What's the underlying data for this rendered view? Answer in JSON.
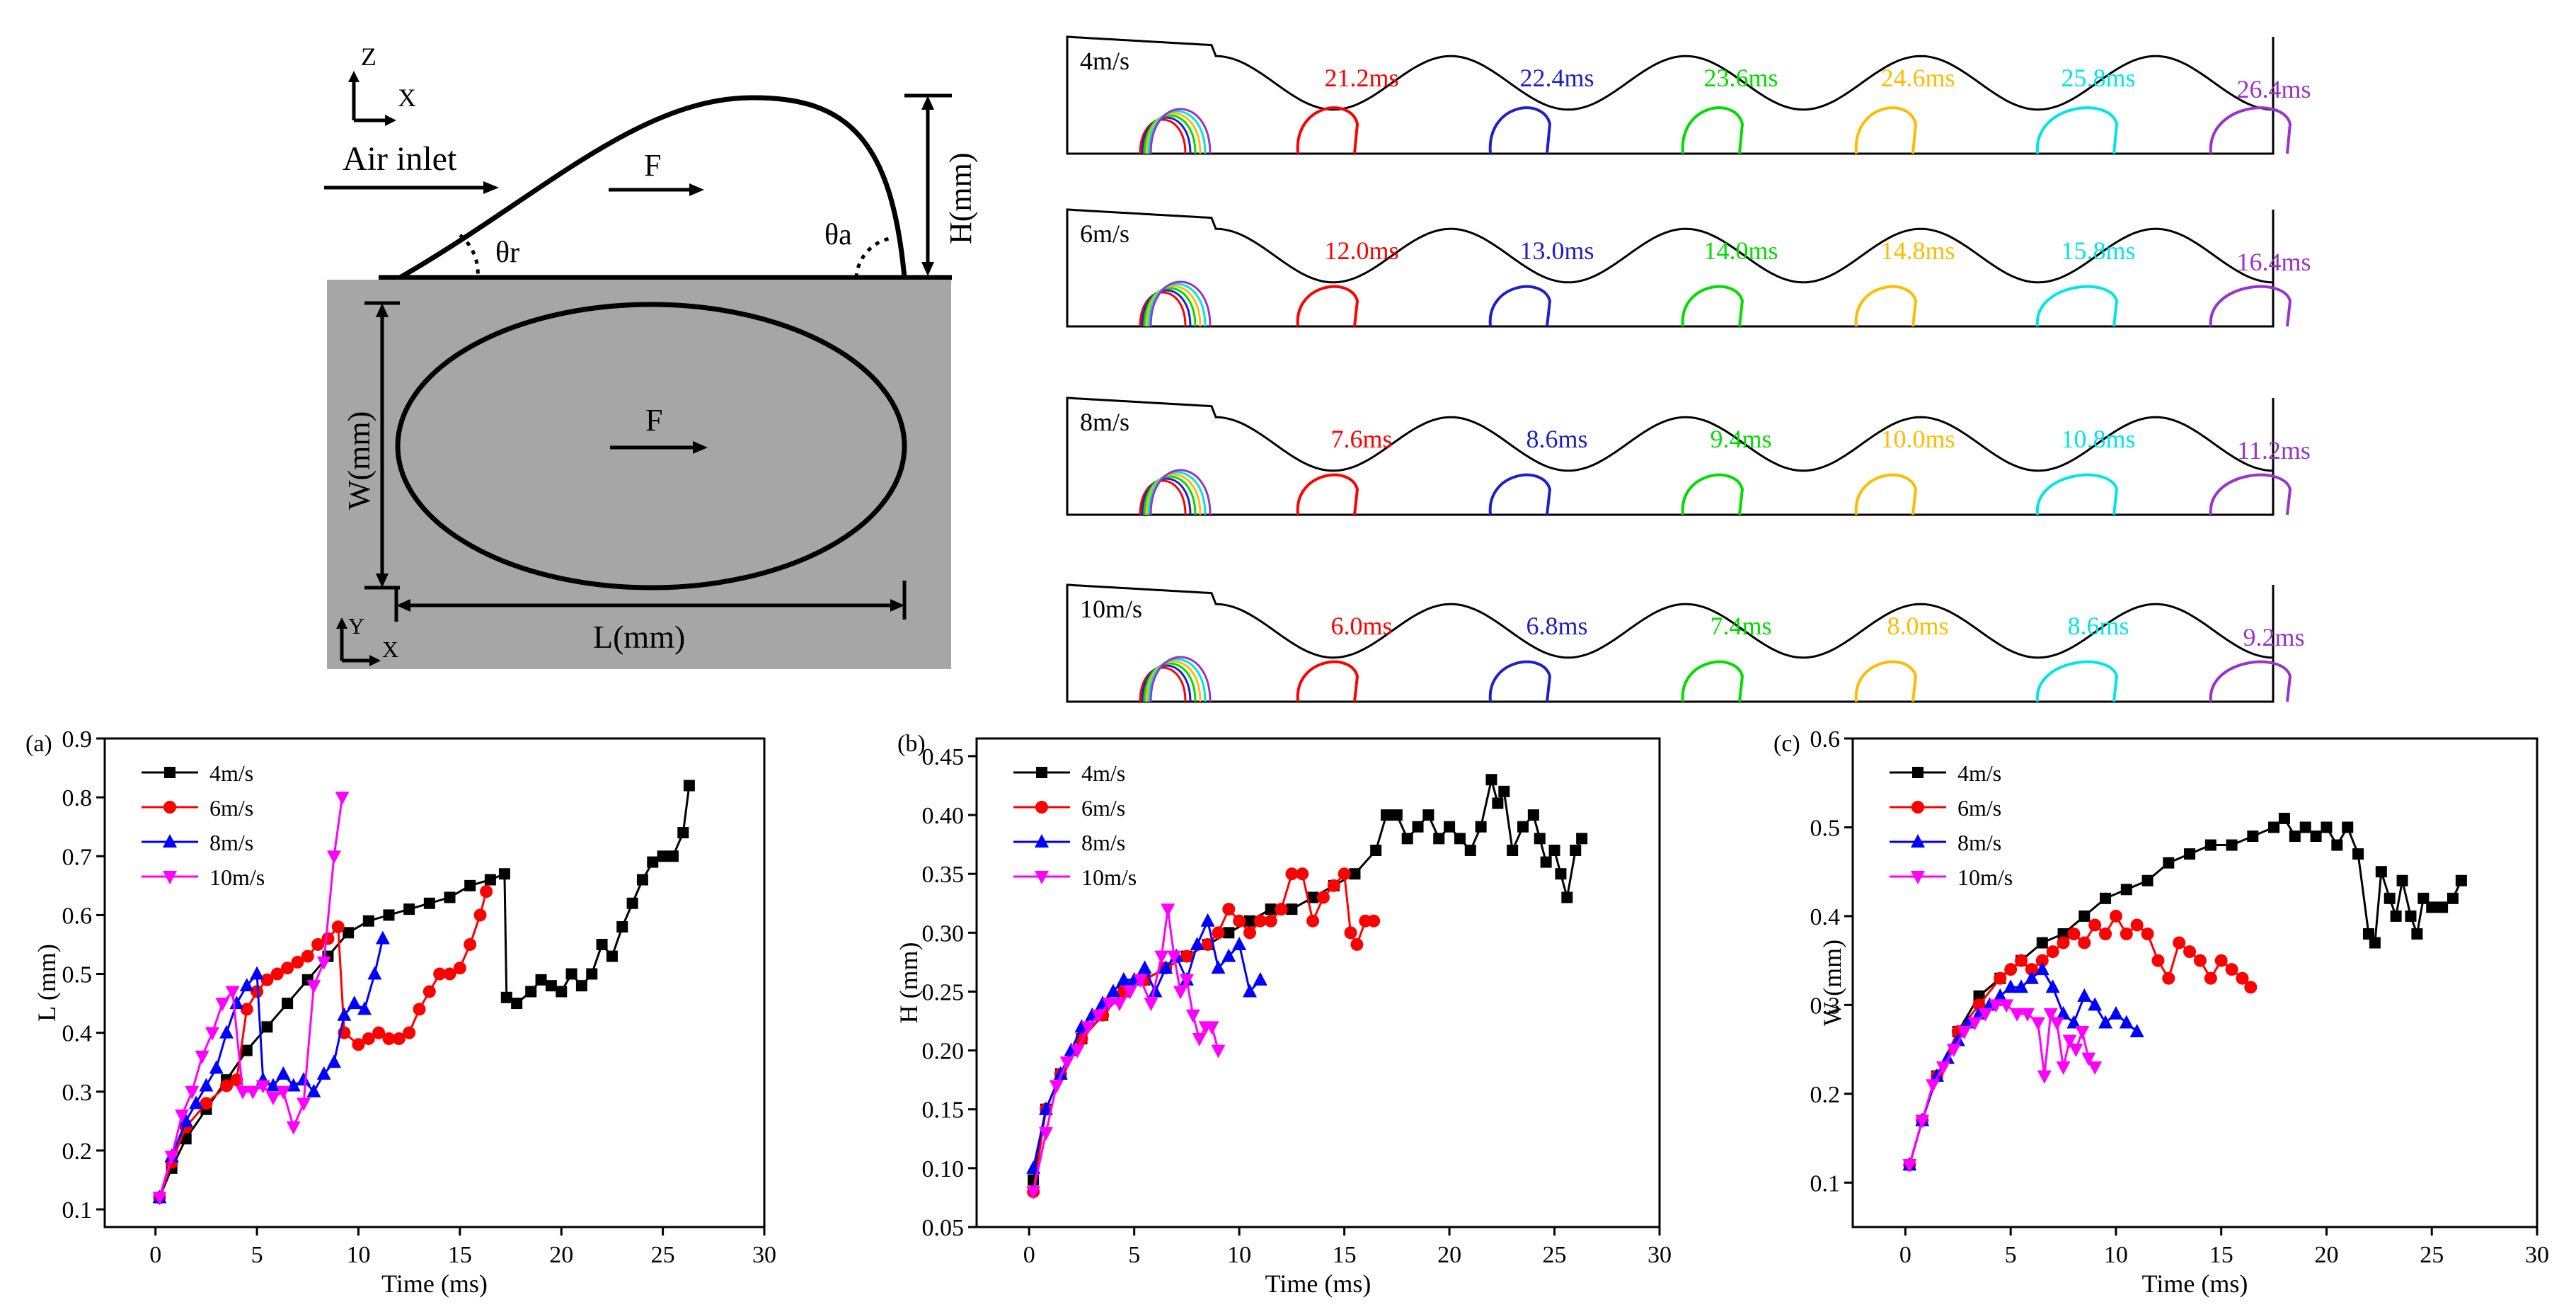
{
  "schematic": {
    "axes_top": {
      "z": "Z",
      "x": "X"
    },
    "axes_bottom": {
      "y": "Y",
      "x": "X"
    },
    "air_inlet": "Air inlet",
    "force_label": "F",
    "theta_r": "θr",
    "theta_a": "θa",
    "height_label": "H(mm)",
    "width_label": "W(mm)",
    "length_label": "L(mm)",
    "colors": {
      "plate": "#a6a6a6",
      "stroke": "#000000"
    }
  },
  "snapshots": [
    {
      "speed": "4m/s",
      "times": [
        "21.2ms",
        "22.4ms",
        "23.6ms",
        "24.6ms",
        "25.8ms",
        "26.4ms"
      ]
    },
    {
      "speed": "6m/s",
      "times": [
        "12.0ms",
        "13.0ms",
        "14.0ms",
        "14.8ms",
        "15.8ms",
        "16.4ms"
      ]
    },
    {
      "speed": "8m/s",
      "times": [
        "7.6ms",
        "8.6ms",
        "9.4ms",
        "10.0ms",
        "10.8ms",
        "11.2ms"
      ]
    },
    {
      "speed": "10m/s",
      "times": [
        "6.0ms",
        "6.8ms",
        "7.4ms",
        "8.0ms",
        "8.6ms",
        "9.2ms"
      ]
    }
  ],
  "snapshot_colors": [
    "#ff0000",
    "#1e1ecc",
    "#00dd00",
    "#ffbb00",
    "#00e5e5",
    "#9933cc"
  ],
  "chart_data": [
    {
      "type": "line",
      "panel": "(a)",
      "xlabel": "Time (ms)",
      "ylabel": "L (mm)",
      "xlim": [
        -2.5,
        30
      ],
      "ylim": [
        0.07,
        0.9
      ],
      "xticks": [
        "0",
        "5",
        "10",
        "15",
        "20",
        "25",
        "30"
      ],
      "yticks": [
        "0.1",
        "0.2",
        "0.3",
        "0.4",
        "0.5",
        "0.6",
        "0.7",
        "0.8",
        "0.9"
      ],
      "legend": "top-left",
      "series": [
        {
          "name": "4m/s",
          "color": "#000000",
          "marker": "square",
          "x": [
            0.2,
            0.8,
            1.5,
            2.5,
            3.5,
            4.5,
            5.5,
            6.5,
            7.5,
            8.5,
            9.5,
            10.5,
            11.5,
            12.5,
            13.5,
            14.5,
            15.5,
            16.5,
            17.2,
            17.3,
            17.8,
            18.5,
            19.0,
            19.5,
            20.0,
            20.5,
            21.0,
            21.5,
            22.0,
            22.5,
            23.0,
            23.5,
            24.0,
            24.5,
            25.0,
            25.5,
            26.0,
            26.3
          ],
          "y": [
            0.12,
            0.17,
            0.22,
            0.27,
            0.32,
            0.37,
            0.41,
            0.45,
            0.49,
            0.53,
            0.57,
            0.59,
            0.6,
            0.61,
            0.62,
            0.63,
            0.65,
            0.66,
            0.67,
            0.46,
            0.45,
            0.47,
            0.49,
            0.48,
            0.47,
            0.5,
            0.48,
            0.5,
            0.55,
            0.53,
            0.58,
            0.62,
            0.66,
            0.69,
            0.7,
            0.7,
            0.74,
            0.82
          ]
        },
        {
          "name": "6m/s",
          "color": "#ff0000",
          "marker": "circle",
          "x": [
            0.2,
            0.8,
            1.5,
            2.5,
            3.5,
            4.0,
            4.5,
            5.0,
            5.5,
            6.0,
            6.5,
            7.0,
            7.5,
            8.0,
            8.5,
            9.0,
            9.3,
            10.0,
            10.5,
            11.0,
            11.5,
            12.0,
            12.5,
            13.0,
            13.5,
            14.0,
            14.5,
            15.0,
            15.5,
            16.0,
            16.3
          ],
          "y": [
            0.12,
            0.18,
            0.24,
            0.28,
            0.31,
            0.32,
            0.44,
            0.47,
            0.49,
            0.5,
            0.51,
            0.52,
            0.53,
            0.55,
            0.56,
            0.58,
            0.4,
            0.38,
            0.39,
            0.4,
            0.39,
            0.39,
            0.4,
            0.44,
            0.47,
            0.5,
            0.5,
            0.51,
            0.55,
            0.6,
            0.64
          ]
        },
        {
          "name": "8m/s",
          "color": "#0000ff",
          "marker": "triangle-up",
          "x": [
            0.2,
            0.8,
            1.5,
            2.0,
            2.5,
            3.0,
            3.5,
            4.0,
            4.5,
            5.0,
            5.3,
            5.8,
            6.3,
            6.8,
            7.3,
            7.8,
            8.3,
            8.8,
            9.3,
            9.8,
            10.3,
            10.8,
            11.2
          ],
          "y": [
            0.12,
            0.19,
            0.25,
            0.28,
            0.31,
            0.34,
            0.4,
            0.45,
            0.48,
            0.5,
            0.32,
            0.31,
            0.33,
            0.31,
            0.32,
            0.3,
            0.33,
            0.35,
            0.43,
            0.45,
            0.44,
            0.5,
            0.56
          ]
        },
        {
          "name": "10m/s",
          "color": "#ff00ff",
          "marker": "triangle-down",
          "x": [
            0.2,
            0.8,
            1.3,
            1.8,
            2.3,
            2.8,
            3.3,
            3.8,
            4.3,
            4.8,
            5.3,
            5.8,
            6.3,
            6.8,
            7.3,
            7.8,
            8.3,
            8.8,
            9.2
          ],
          "y": [
            0.12,
            0.19,
            0.26,
            0.3,
            0.36,
            0.4,
            0.45,
            0.47,
            0.3,
            0.3,
            0.31,
            0.29,
            0.3,
            0.24,
            0.28,
            0.48,
            0.52,
            0.7,
            0.8
          ]
        }
      ]
    },
    {
      "type": "line",
      "panel": "(b)",
      "xlabel": "Time (ms)",
      "ylabel": "H (mm)",
      "xlim": [
        -2.5,
        30
      ],
      "ylim": [
        0.05,
        0.465
      ],
      "xticks": [
        "0",
        "5",
        "10",
        "15",
        "20",
        "25",
        "30"
      ],
      "yticks": [
        "0.05",
        "0.10",
        "0.15",
        "0.20",
        "0.25",
        "0.30",
        "0.35",
        "0.40",
        "0.45"
      ],
      "legend": "top-left",
      "series": [
        {
          "name": "4m/s",
          "color": "#000000",
          "marker": "square",
          "x": [
            0.2,
            0.8,
            1.5,
            2.5,
            3.5,
            4.5,
            5.5,
            6.5,
            7.5,
            8.5,
            9.5,
            10.5,
            11.5,
            12.5,
            13.5,
            14.5,
            15.5,
            16.5,
            17.0,
            17.5,
            18.0,
            18.5,
            19.0,
            19.5,
            20.0,
            20.5,
            21.0,
            21.5,
            22.0,
            22.3,
            22.6,
            23.0,
            23.5,
            24.0,
            24.3,
            24.6,
            25.0,
            25.3,
            25.6,
            26.0,
            26.3
          ],
          "y": [
            0.09,
            0.15,
            0.18,
            0.21,
            0.23,
            0.25,
            0.26,
            0.27,
            0.28,
            0.29,
            0.3,
            0.31,
            0.32,
            0.32,
            0.33,
            0.34,
            0.35,
            0.37,
            0.4,
            0.4,
            0.38,
            0.39,
            0.4,
            0.38,
            0.39,
            0.38,
            0.37,
            0.39,
            0.43,
            0.41,
            0.42,
            0.37,
            0.39,
            0.4,
            0.38,
            0.36,
            0.37,
            0.35,
            0.33,
            0.37,
            0.38
          ]
        },
        {
          "name": "6m/s",
          "color": "#ff0000",
          "marker": "circle",
          "x": [
            0.2,
            0.8,
            1.5,
            2.5,
            3.5,
            4.5,
            5.5,
            6.5,
            7.5,
            8.5,
            9.0,
            9.5,
            10.0,
            10.5,
            11.0,
            11.5,
            12.0,
            12.5,
            13.0,
            13.5,
            14.0,
            14.5,
            15.0,
            15.3,
            15.6,
            16.0,
            16.4
          ],
          "y": [
            0.08,
            0.15,
            0.18,
            0.21,
            0.23,
            0.25,
            0.26,
            0.27,
            0.28,
            0.29,
            0.3,
            0.32,
            0.31,
            0.3,
            0.31,
            0.31,
            0.32,
            0.35,
            0.35,
            0.31,
            0.33,
            0.34,
            0.35,
            0.3,
            0.29,
            0.31,
            0.31
          ]
        },
        {
          "name": "8m/s",
          "color": "#0000ff",
          "marker": "triangle-up",
          "x": [
            0.2,
            0.8,
            1.5,
            2.0,
            2.5,
            3.0,
            3.5,
            4.0,
            4.5,
            5.0,
            5.5,
            6.0,
            6.5,
            7.0,
            7.5,
            8.0,
            8.5,
            9.0,
            9.5,
            10.0,
            10.5,
            11.0
          ],
          "y": [
            0.1,
            0.15,
            0.18,
            0.2,
            0.22,
            0.23,
            0.24,
            0.25,
            0.26,
            0.26,
            0.27,
            0.25,
            0.27,
            0.28,
            0.26,
            0.29,
            0.31,
            0.27,
            0.28,
            0.29,
            0.25,
            0.26
          ]
        },
        {
          "name": "10m/s",
          "color": "#ff00ff",
          "marker": "triangle-down",
          "x": [
            0.2,
            0.8,
            1.3,
            1.8,
            2.3,
            2.8,
            3.3,
            3.8,
            4.3,
            4.8,
            5.3,
            5.8,
            6.3,
            6.6,
            6.9,
            7.2,
            7.5,
            7.8,
            8.1,
            8.4,
            8.7,
            9.0
          ],
          "y": [
            0.08,
            0.13,
            0.17,
            0.19,
            0.2,
            0.22,
            0.23,
            0.24,
            0.24,
            0.25,
            0.26,
            0.24,
            0.28,
            0.32,
            0.28,
            0.25,
            0.26,
            0.23,
            0.21,
            0.22,
            0.22,
            0.2
          ]
        }
      ]
    },
    {
      "type": "line",
      "panel": "(c)",
      "xlabel": "Time (ms)",
      "ylabel": "W (mm)",
      "xlim": [
        -2.5,
        30
      ],
      "ylim": [
        0.05,
        0.6
      ],
      "xticks": [
        "0",
        "5",
        "10",
        "15",
        "20",
        "25",
        "30"
      ],
      "yticks": [
        "0.1",
        "0.2",
        "0.3",
        "0.4",
        "0.5",
        "0.6"
      ],
      "legend": "top-left",
      "series": [
        {
          "name": "4m/s",
          "color": "#000000",
          "marker": "square",
          "x": [
            0.2,
            0.8,
            1.5,
            2.5,
            3.5,
            4.5,
            5.5,
            6.5,
            7.5,
            8.5,
            9.5,
            10.5,
            11.5,
            12.5,
            13.5,
            14.5,
            15.5,
            16.5,
            17.5,
            18.0,
            18.5,
            19.0,
            19.5,
            20.0,
            20.5,
            21.0,
            21.5,
            22.0,
            22.3,
            22.6,
            23.0,
            23.3,
            23.6,
            24.0,
            24.3,
            24.6,
            25.0,
            25.5,
            26.0,
            26.4
          ],
          "y": [
            0.12,
            0.17,
            0.22,
            0.27,
            0.31,
            0.33,
            0.35,
            0.37,
            0.38,
            0.4,
            0.42,
            0.43,
            0.44,
            0.46,
            0.47,
            0.48,
            0.48,
            0.49,
            0.5,
            0.51,
            0.49,
            0.5,
            0.49,
            0.5,
            0.48,
            0.5,
            0.47,
            0.38,
            0.37,
            0.45,
            0.42,
            0.4,
            0.44,
            0.4,
            0.38,
            0.42,
            0.41,
            0.41,
            0.42,
            0.44
          ]
        },
        {
          "name": "6m/s",
          "color": "#ff0000",
          "marker": "circle",
          "x": [
            0.2,
            0.8,
            1.5,
            2.5,
            3.5,
            4.5,
            5.0,
            5.5,
            6.0,
            6.5,
            7.0,
            7.5,
            8.0,
            8.5,
            9.0,
            9.5,
            10.0,
            10.5,
            11.0,
            11.5,
            12.0,
            12.5,
            13.0,
            13.5,
            14.0,
            14.5,
            15.0,
            15.5,
            16.0,
            16.4
          ],
          "y": [
            0.12,
            0.17,
            0.22,
            0.27,
            0.3,
            0.33,
            0.34,
            0.35,
            0.34,
            0.35,
            0.36,
            0.37,
            0.38,
            0.37,
            0.39,
            0.38,
            0.4,
            0.38,
            0.39,
            0.38,
            0.35,
            0.33,
            0.37,
            0.36,
            0.35,
            0.33,
            0.35,
            0.34,
            0.33,
            0.32
          ]
        },
        {
          "name": "8m/s",
          "color": "#0000ff",
          "marker": "triangle-up",
          "x": [
            0.2,
            0.8,
            1.5,
            2.0,
            2.5,
            3.0,
            3.5,
            4.0,
            4.5,
            5.0,
            5.5,
            6.0,
            6.5,
            7.0,
            7.5,
            8.0,
            8.5,
            9.0,
            9.5,
            10.0,
            10.5,
            11.0
          ],
          "y": [
            0.12,
            0.17,
            0.22,
            0.24,
            0.26,
            0.28,
            0.29,
            0.3,
            0.31,
            0.32,
            0.32,
            0.33,
            0.34,
            0.32,
            0.29,
            0.28,
            0.31,
            0.3,
            0.28,
            0.29,
            0.28,
            0.27
          ]
        },
        {
          "name": "10m/s",
          "color": "#ff00ff",
          "marker": "triangle-down",
          "x": [
            0.2,
            0.8,
            1.3,
            1.8,
            2.3,
            2.8,
            3.3,
            3.8,
            4.3,
            4.8,
            5.3,
            5.8,
            6.3,
            6.6,
            6.9,
            7.2,
            7.5,
            7.8,
            8.1,
            8.4,
            8.7,
            9.0
          ],
          "y": [
            0.12,
            0.17,
            0.21,
            0.23,
            0.25,
            0.27,
            0.28,
            0.29,
            0.3,
            0.3,
            0.29,
            0.29,
            0.28,
            0.22,
            0.29,
            0.28,
            0.23,
            0.26,
            0.25,
            0.27,
            0.24,
            0.23
          ]
        }
      ]
    }
  ]
}
